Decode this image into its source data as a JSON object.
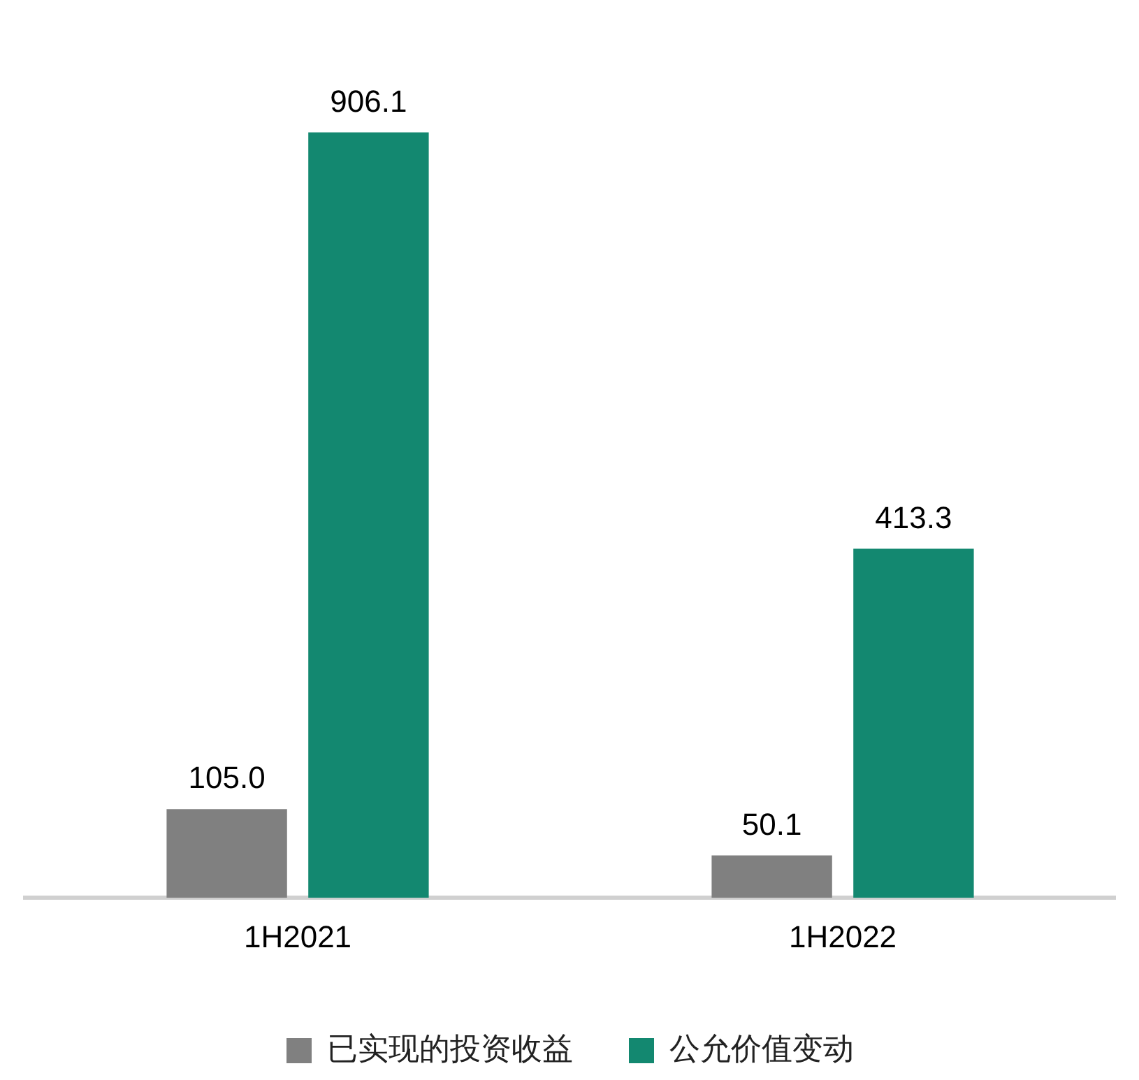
{
  "chart_data": {
    "type": "bar",
    "categories": [
      "1H2021",
      "1H2022"
    ],
    "series": [
      {
        "name": "已实现的投资收益",
        "color": "#808080",
        "values": [
          105.0,
          50.1
        ],
        "value_labels": [
          "105.0",
          "50.1"
        ]
      },
      {
        "name": "公允价值变动",
        "color": "#138870",
        "values": [
          906.1,
          413.3
        ],
        "value_labels": [
          "906.1",
          "413.3"
        ]
      }
    ],
    "legend": "bottom",
    "grid": false
  }
}
